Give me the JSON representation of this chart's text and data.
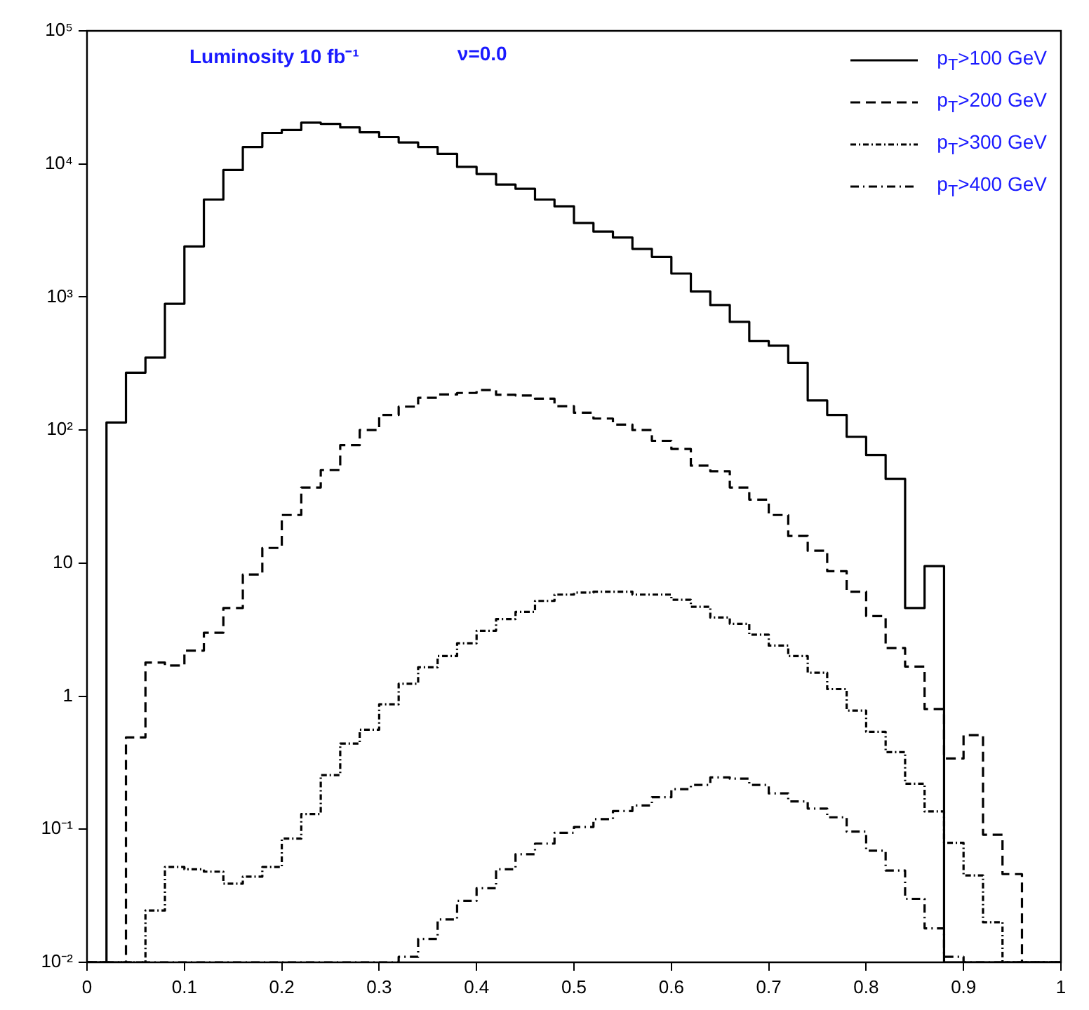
{
  "chart_data": {
    "type": "histogram",
    "annotations": [
      "Luminosity 10 fb⁻¹",
      "ν=0.0"
    ],
    "bins": [
      0,
      0.02,
      0.04,
      0.06,
      0.08,
      0.1,
      0.12,
      0.14,
      0.16,
      0.18,
      0.2,
      0.22,
      0.24,
      0.26,
      0.28,
      0.3,
      0.32,
      0.34,
      0.36,
      0.38,
      0.4,
      0.42,
      0.44,
      0.46,
      0.48,
      0.5,
      0.52,
      0.54,
      0.56,
      0.58,
      0.6,
      0.62,
      0.64,
      0.66,
      0.68,
      0.7,
      0.72,
      0.74,
      0.76,
      0.78,
      0.8,
      0.82,
      0.84,
      0.86,
      0.88,
      0.9,
      0.92,
      0.94,
      0.96,
      0.98,
      1
    ],
    "series": [
      {
        "name": "p$_{T}$>100 GeV",
        "color": "#000000",
        "line_style": "solid",
        "values": [
          null,
          114,
          270,
          350,
          890,
          2400,
          5400,
          9000,
          13400,
          17100,
          18000,
          20400,
          20000,
          18800,
          17300,
          15900,
          14500,
          13400,
          11900,
          9500,
          8400,
          7000,
          6500,
          5400,
          4800,
          3600,
          3100,
          2800,
          2300,
          2000,
          1500,
          1100,
          870,
          650,
          466,
          430,
          320,
          167,
          130,
          89,
          65,
          43,
          4.6,
          9.5,
          null,
          null,
          null,
          null,
          null,
          null
        ]
      },
      {
        "name": "p$_{T}$>200 GeV",
        "color": "#010101",
        "line_style": "dashed",
        "values": [
          null,
          null,
          0.49,
          1.79,
          1.7,
          2.2,
          3.0,
          4.6,
          8.2,
          13,
          23,
          37,
          50,
          77,
          100,
          130,
          150,
          175,
          185,
          190,
          200,
          184,
          182,
          172,
          151,
          135,
          122,
          110,
          100,
          83,
          72,
          54,
          49,
          37,
          30,
          23,
          16,
          12.4,
          8.7,
          6.1,
          4.0,
          2.3,
          1.67,
          0.8,
          0.34,
          0.51,
          0.091,
          0.046,
          null,
          null
        ]
      },
      {
        "name": "p$_{T}$>300 GeV",
        "color": "#020202",
        "line_style": "dotted",
        "values": [
          null,
          null,
          null,
          0.0245,
          0.052,
          0.05,
          0.048,
          0.039,
          0.044,
          0.052,
          0.085,
          0.13,
          0.255,
          0.44,
          0.56,
          0.87,
          1.24,
          1.65,
          2.0,
          2.5,
          3.1,
          3.8,
          4.3,
          5.2,
          5.8,
          6.0,
          6.1,
          6.1,
          5.8,
          5.8,
          5.3,
          4.7,
          3.9,
          3.5,
          2.9,
          2.4,
          2.0,
          1.5,
          1.13,
          0.78,
          0.54,
          0.38,
          0.22,
          0.136,
          0.079,
          0.045,
          0.02,
          null,
          null,
          null
        ]
      },
      {
        "name": "p$_{T}$>400 GeV",
        "color": "#030303",
        "line_style": "dashdot",
        "values": [
          null,
          null,
          null,
          null,
          null,
          null,
          null,
          null,
          null,
          null,
          null,
          null,
          null,
          null,
          null,
          null,
          0.011,
          0.015,
          0.021,
          0.029,
          0.036,
          0.05,
          0.065,
          0.078,
          0.094,
          0.104,
          0.119,
          0.137,
          0.151,
          0.174,
          0.2,
          0.215,
          0.245,
          0.24,
          0.215,
          0.186,
          0.162,
          0.143,
          0.123,
          0.096,
          0.069,
          0.049,
          0.03,
          0.018,
          0.011,
          null,
          null,
          null,
          null,
          null
        ]
      }
    ],
    "xlim": [
      0,
      1
    ],
    "xticks": [
      0,
      0.1,
      0.2,
      0.3,
      0.4,
      0.5,
      0.6,
      0.7,
      0.8,
      0.9,
      1
    ],
    "log": true,
    "ylim": [
      0.01,
      100000
    ],
    "yticks": [
      {
        "value": 0.01,
        "label": "10⁻²"
      },
      {
        "value": 0.1,
        "label": "10⁻¹"
      },
      1,
      10,
      {
        "value": 100,
        "label": "10²"
      },
      {
        "value": 1000,
        "label": "10³"
      },
      {
        "value": 10000,
        "label": "10⁴"
      },
      {
        "value": 100000,
        "label": "10⁵"
      }
    ],
    "grid": false,
    "legend": "top right",
    "marker": "none"
  }
}
